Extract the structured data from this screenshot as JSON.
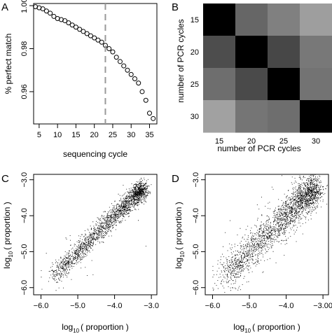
{
  "chart_data": [
    {
      "panel": "A",
      "type": "scatter",
      "xlabel": "sequencing cycle",
      "ylabel": "% perfect match",
      "xlim": [
        3.5,
        37
      ],
      "ylim": [
        0.945,
        1.001
      ],
      "xticks": [
        5,
        10,
        15,
        20,
        25,
        30,
        35
      ],
      "yticks": [
        0.96,
        0.98,
        1.0
      ],
      "ytick_labels": [
        "0.96",
        "0.98",
        "1.00"
      ],
      "vline": 23,
      "x": [
        4,
        5,
        6,
        7,
        8,
        9,
        10,
        11,
        12,
        13,
        14,
        15,
        16,
        17,
        18,
        19,
        20,
        21,
        22,
        23,
        24,
        25,
        26,
        27,
        28,
        29,
        30,
        31,
        32,
        33,
        34,
        35,
        36
      ],
      "y": [
        0.9995,
        0.999,
        0.9985,
        0.9975,
        0.9965,
        0.995,
        0.994,
        0.9935,
        0.993,
        0.992,
        0.991,
        0.99,
        0.989,
        0.988,
        0.987,
        0.986,
        0.985,
        0.984,
        0.983,
        0.9815,
        0.98,
        0.9785,
        0.976,
        0.974,
        0.972,
        0.97,
        0.968,
        0.966,
        0.964,
        0.96,
        0.956,
        0.95,
        0.9475
      ],
      "grid": false
    },
    {
      "panel": "B",
      "type": "heatmap",
      "xlabel": "number of PCR cycles",
      "ylabel": "number of PCR cycles",
      "categories": [
        "15",
        "20",
        "25",
        "30"
      ],
      "values": [
        [
          0.0,
          0.4,
          0.5,
          0.62
        ],
        [
          0.3,
          0.0,
          0.28,
          0.47
        ],
        [
          0.43,
          0.29,
          0.0,
          0.45
        ],
        [
          0.63,
          0.46,
          0.43,
          0.0
        ]
      ],
      "colors": [
        "#000000",
        "#ffffff"
      ]
    },
    {
      "panel": "C",
      "type": "scatter",
      "xlabel": "log10( proportion )",
      "ylabel": "log10( proportion )",
      "xlim": [
        -6.2,
        -2.85
      ],
      "ylim": [
        -6.2,
        -2.85
      ],
      "xticks": [
        -6,
        -5,
        -4,
        -3
      ],
      "yticks": [
        -6,
        -5,
        -4,
        -3
      ],
      "xtick_labels": [
        "−6.0",
        "−5.0",
        "−4.0",
        "−3.0"
      ],
      "spread": 0.13,
      "outliers": 30,
      "points": 2200
    },
    {
      "panel": "D",
      "type": "scatter",
      "xlabel": "log10( proportion )",
      "ylabel": "log10( proportion )",
      "xlim": [
        -6.2,
        -2.85
      ],
      "ylim": [
        -6.2,
        -2.85
      ],
      "xticks": [
        -6,
        -5,
        -4,
        -3
      ],
      "yticks": [
        -6,
        -5,
        -4,
        -3
      ],
      "xtick_labels": [
        "−6.0",
        "−5.0",
        "−4.0",
        "−3.00"
      ],
      "spread": 0.22,
      "outliers": 260,
      "points": 2200
    }
  ],
  "labels": {
    "panel_a": "A",
    "panel_b": "B",
    "panel_c": "C",
    "panel_d": "D",
    "log_prefix": "log",
    "log_sub": "10",
    "log_suffix": "( proportion )"
  }
}
